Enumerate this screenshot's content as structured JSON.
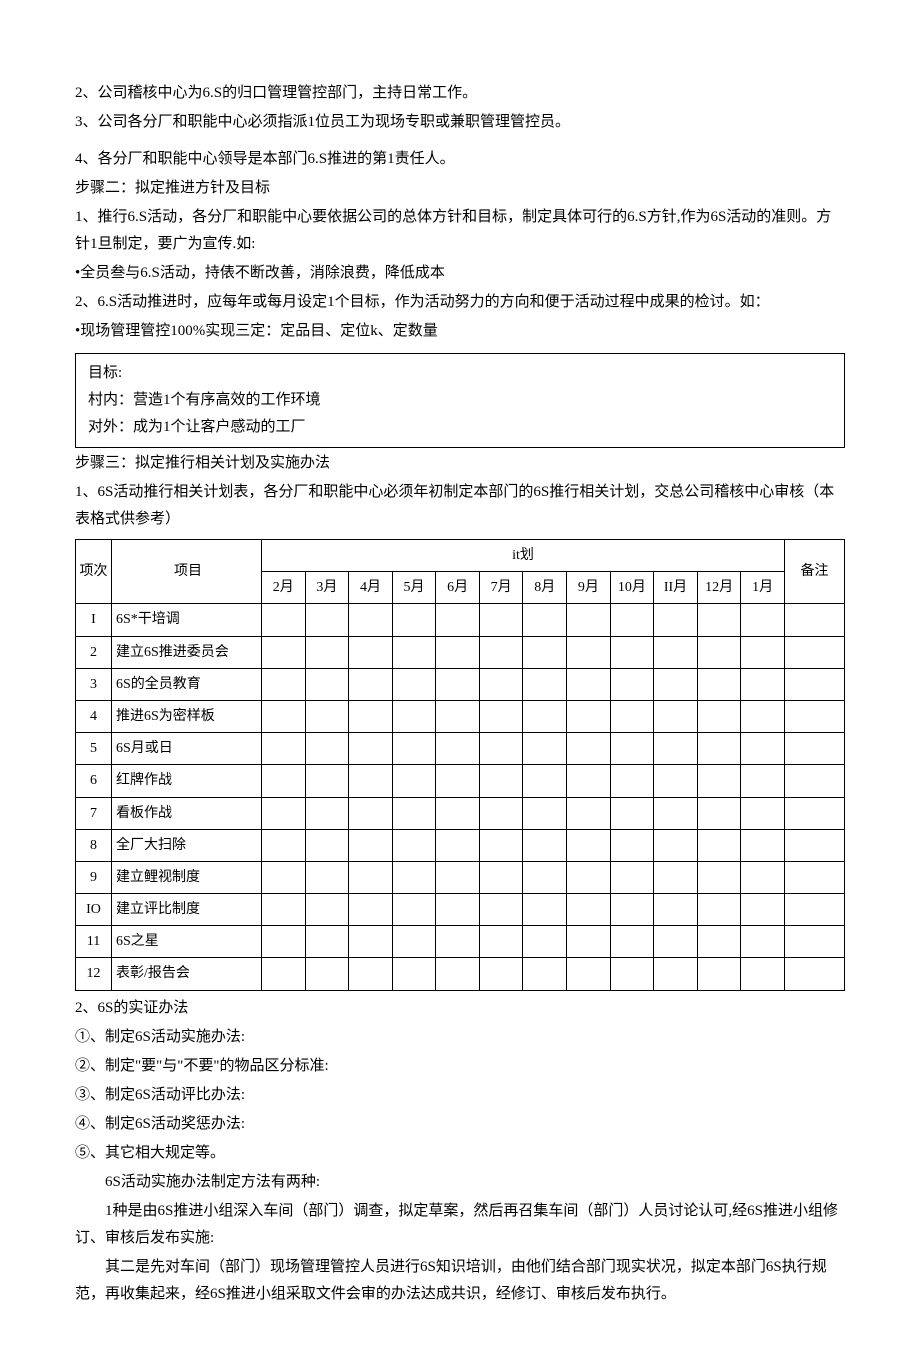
{
  "paragraphs": {
    "p1": "2、公司稽核中心为6.S的归口管理管控部门，主持日常工作。",
    "p2": "3、公司各分厂和职能中心必须指派1位员工为现场专职或兼职管理管控员。",
    "p3": "4、各分厂和职能中心领导是本部门6.S推进的第1责任人。",
    "p4": "步骤二：拟定推进方针及目标",
    "p5": "1、推行6.S活动，各分厂和职能中心要依据公司的总体方针和目标，制定具体可行的6.S方针,作为6S活动的准则。方针1旦制定，要广为宣传.如:",
    "p6": "•全员叁与6.S活动，持俵不断改善，消除浪费，降低成本",
    "p7": "2、6.S活动推进时，应每年或每月设定1个目标，作为活动努力的方向和便于活动过程中成果的检讨。如：",
    "p8": "•现场管理管控100%实现三定：定品目、定位k、定数量"
  },
  "box_lines": {
    "b1": "目标:",
    "b2": "村内：营造1个有序高效的工作环境",
    "b3": "对外：成为1个让客户感动的工厂"
  },
  "after_box": {
    "p1": "步骤三：拟定推行相关计划及实施办法",
    "p2": "1、6S活动推行相关计划表，各分厂和职能中心必须年初制定本部门的6S推行相关计划，交总公司稽核中心审核（本表格式供参考）"
  },
  "table": {
    "headers": {
      "idx": "项次",
      "item": "项目",
      "plan": "it划",
      "note": "备注",
      "months": [
        "2月",
        "3月",
        "4月",
        "5月",
        "6月",
        "7月",
        "8月",
        "9月",
        "10月",
        "II月",
        "12月",
        "1月"
      ]
    },
    "rows": [
      {
        "idx": "I",
        "item": "6S*干培调"
      },
      {
        "idx": "2",
        "item": "建立6S推进委员会"
      },
      {
        "idx": "3",
        "item": "6S的全员教育"
      },
      {
        "idx": "4",
        "item": "推进6S为密样板"
      },
      {
        "idx": "5",
        "item": "6S月或日"
      },
      {
        "idx": "6",
        "item": "红牌作战"
      },
      {
        "idx": "7",
        "item": "看板作战"
      },
      {
        "idx": "8",
        "item": "全厂大扫除"
      },
      {
        "idx": "9",
        "item": "建立鲤视制度"
      },
      {
        "idx": "IO",
        "item": "建立评比制度"
      },
      {
        "idx": "11",
        "item": "6S之星"
      },
      {
        "idx": "12",
        "item": "表彰/报告会"
      }
    ]
  },
  "after_table": {
    "p1": "2、6S的实证办法",
    "p2": "①、制定6S活动实施办法:",
    "p3": "②、制定\"要\"与\"不要\"的物品区分标准:",
    "p4": "③、制定6S活动评比办法:",
    "p5": "④、制定6S活动奖惩办法:",
    "p6": "⑤、其它相大规定等。",
    "p7": "6S活动实施办法制定方法有两种:",
    "p8": "1种是由6S推进小组深入车间（部门）调查，拟定草案，然后再召集车间（部门）人员讨论认可,经6S推进小组修订、审核后发布实施:",
    "p9": "其二是先对车间（部门）现场管理管控人员进行6S知识培训，由他们结合部门现实状况，拟定本部门6S执行规范，再收集起来，经6S推进小组采取文件会审的办法达成共识，经修订、审核后发布执行。"
  }
}
